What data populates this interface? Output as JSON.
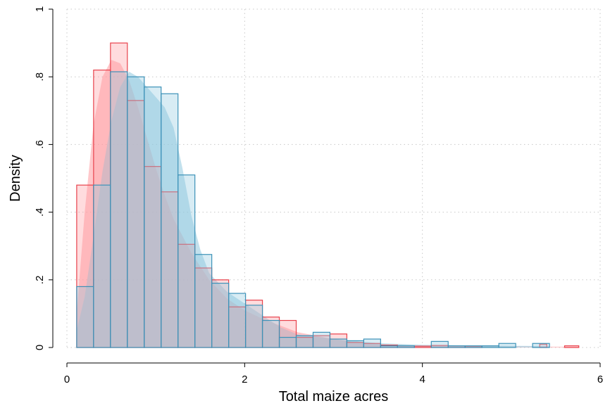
{
  "chart_data": {
    "type": "histogram",
    "xlabel": "Total maize acres",
    "ylabel": "Density",
    "xlim": [
      0,
      6
    ],
    "ylim": [
      0,
      1
    ],
    "x_ticks": [
      {
        "value": 0,
        "label": "0"
      },
      {
        "value": 2,
        "label": "2"
      },
      {
        "value": 4,
        "label": "4"
      },
      {
        "value": 6,
        "label": "6"
      }
    ],
    "y_ticks": [
      {
        "value": 0,
        "label": "0"
      },
      {
        "value": 0.2,
        "label": ".2"
      },
      {
        "value": 0.4,
        "label": ".4"
      },
      {
        "value": 0.6,
        "label": ".6"
      },
      {
        "value": 0.8,
        "label": ".8"
      },
      {
        "value": 1,
        "label": "1"
      }
    ],
    "grid": true,
    "series": [
      {
        "color": "#e8424c",
        "fill": "#ff9aa0",
        "bins": [
          {
            "x0": 0.11,
            "x1": 0.3,
            "y": 0.48
          },
          {
            "x0": 0.3,
            "x1": 0.49,
            "y": 0.82
          },
          {
            "x0": 0.49,
            "x1": 0.68,
            "y": 0.9
          },
          {
            "x0": 0.68,
            "x1": 0.87,
            "y": 0.73
          },
          {
            "x0": 0.87,
            "x1": 1.06,
            "y": 0.535
          },
          {
            "x0": 1.06,
            "x1": 1.25,
            "y": 0.46
          },
          {
            "x0": 1.25,
            "x1": 1.44,
            "y": 0.305
          },
          {
            "x0": 1.44,
            "x1": 1.63,
            "y": 0.235
          },
          {
            "x0": 1.63,
            "x1": 1.82,
            "y": 0.2
          },
          {
            "x0": 1.82,
            "x1": 2.01,
            "y": 0.12
          },
          {
            "x0": 2.01,
            "x1": 2.2,
            "y": 0.14
          },
          {
            "x0": 2.2,
            "x1": 2.39,
            "y": 0.09
          },
          {
            "x0": 2.39,
            "x1": 2.58,
            "y": 0.08
          },
          {
            "x0": 2.58,
            "x1": 2.77,
            "y": 0.03
          },
          {
            "x0": 2.77,
            "x1": 2.96,
            "y": 0.035
          },
          {
            "x0": 2.96,
            "x1": 3.15,
            "y": 0.04
          },
          {
            "x0": 3.15,
            "x1": 3.34,
            "y": 0.015
          },
          {
            "x0": 3.34,
            "x1": 3.53,
            "y": 0.012
          },
          {
            "x0": 3.53,
            "x1": 3.72,
            "y": 0.007
          },
          {
            "x0": 3.72,
            "x1": 3.91,
            "y": 0.005
          },
          {
            "x0": 3.91,
            "x1": 4.1,
            "y": 0.004
          },
          {
            "x0": 4.1,
            "x1": 4.29,
            "y": 0.006
          },
          {
            "x0": 4.29,
            "x1": 4.48,
            "y": 0.005
          },
          {
            "x0": 4.48,
            "x1": 4.67,
            "y": 0.004
          },
          {
            "x0": 5.32,
            "x1": 5.4,
            "y": 0.01
          },
          {
            "x0": 5.6,
            "x1": 5.76,
            "y": 0.005
          }
        ],
        "density_curve": [
          {
            "x": 0.11,
            "y": 0.1
          },
          {
            "x": 0.2,
            "y": 0.4
          },
          {
            "x": 0.3,
            "y": 0.66
          },
          {
            "x": 0.4,
            "y": 0.8
          },
          {
            "x": 0.5,
            "y": 0.85
          },
          {
            "x": 0.6,
            "y": 0.84
          },
          {
            "x": 0.7,
            "y": 0.79
          },
          {
            "x": 0.8,
            "y": 0.71
          },
          {
            "x": 0.9,
            "y": 0.62
          },
          {
            "x": 1.0,
            "y": 0.53
          },
          {
            "x": 1.1,
            "y": 0.45
          },
          {
            "x": 1.2,
            "y": 0.38
          },
          {
            "x": 1.4,
            "y": 0.28
          },
          {
            "x": 1.6,
            "y": 0.2
          },
          {
            "x": 1.8,
            "y": 0.145
          },
          {
            "x": 2.0,
            "y": 0.11
          },
          {
            "x": 2.2,
            "y": 0.085
          },
          {
            "x": 2.4,
            "y": 0.065
          },
          {
            "x": 2.6,
            "y": 0.045
          },
          {
            "x": 2.8,
            "y": 0.035
          },
          {
            "x": 3.0,
            "y": 0.025
          },
          {
            "x": 3.2,
            "y": 0.017
          },
          {
            "x": 3.5,
            "y": 0.01
          },
          {
            "x": 4.0,
            "y": 0.005
          },
          {
            "x": 5.0,
            "y": 0.003
          },
          {
            "x": 5.76,
            "y": 0.002
          }
        ]
      },
      {
        "color": "#3d92b8",
        "fill": "#8fc9df",
        "bins": [
          {
            "x0": 0.11,
            "x1": 0.3,
            "y": 0.18
          },
          {
            "x0": 0.3,
            "x1": 0.49,
            "y": 0.48
          },
          {
            "x0": 0.49,
            "x1": 0.68,
            "y": 0.815
          },
          {
            "x0": 0.68,
            "x1": 0.87,
            "y": 0.8
          },
          {
            "x0": 0.87,
            "x1": 1.06,
            "y": 0.77
          },
          {
            "x0": 1.06,
            "x1": 1.25,
            "y": 0.75
          },
          {
            "x0": 1.25,
            "x1": 1.44,
            "y": 0.51
          },
          {
            "x0": 1.44,
            "x1": 1.63,
            "y": 0.275
          },
          {
            "x0": 1.63,
            "x1": 1.82,
            "y": 0.19
          },
          {
            "x0": 1.82,
            "x1": 2.01,
            "y": 0.16
          },
          {
            "x0": 2.01,
            "x1": 2.2,
            "y": 0.125
          },
          {
            "x0": 2.2,
            "x1": 2.39,
            "y": 0.08
          },
          {
            "x0": 2.39,
            "x1": 2.58,
            "y": 0.03
          },
          {
            "x0": 2.58,
            "x1": 2.77,
            "y": 0.035
          },
          {
            "x0": 2.77,
            "x1": 2.96,
            "y": 0.045
          },
          {
            "x0": 2.96,
            "x1": 3.15,
            "y": 0.025
          },
          {
            "x0": 3.15,
            "x1": 3.34,
            "y": 0.02
          },
          {
            "x0": 3.34,
            "x1": 3.53,
            "y": 0.025
          },
          {
            "x0": 3.53,
            "x1": 3.72,
            "y": 0.005
          },
          {
            "x0": 3.72,
            "x1": 3.91,
            "y": 0.005
          },
          {
            "x0": 4.1,
            "x1": 4.29,
            "y": 0.018
          },
          {
            "x0": 4.29,
            "x1": 4.48,
            "y": 0.005
          },
          {
            "x0": 4.48,
            "x1": 4.67,
            "y": 0.005
          },
          {
            "x0": 4.67,
            "x1": 4.86,
            "y": 0.005
          },
          {
            "x0": 4.86,
            "x1": 5.05,
            "y": 0.012
          },
          {
            "x0": 5.24,
            "x1": 5.43,
            "y": 0.012
          }
        ],
        "density_curve": [
          {
            "x": 0.11,
            "y": 0.05
          },
          {
            "x": 0.2,
            "y": 0.15
          },
          {
            "x": 0.3,
            "y": 0.33
          },
          {
            "x": 0.4,
            "y": 0.52
          },
          {
            "x": 0.5,
            "y": 0.67
          },
          {
            "x": 0.6,
            "y": 0.77
          },
          {
            "x": 0.7,
            "y": 0.815
          },
          {
            "x": 0.8,
            "y": 0.8
          },
          {
            "x": 0.9,
            "y": 0.77
          },
          {
            "x": 1.0,
            "y": 0.74
          },
          {
            "x": 1.1,
            "y": 0.71
          },
          {
            "x": 1.2,
            "y": 0.65
          },
          {
            "x": 1.3,
            "y": 0.53
          },
          {
            "x": 1.4,
            "y": 0.39
          },
          {
            "x": 1.5,
            "y": 0.29
          },
          {
            "x": 1.6,
            "y": 0.22
          },
          {
            "x": 1.8,
            "y": 0.165
          },
          {
            "x": 2.0,
            "y": 0.13
          },
          {
            "x": 2.2,
            "y": 0.095
          },
          {
            "x": 2.4,
            "y": 0.06
          },
          {
            "x": 2.6,
            "y": 0.038
          },
          {
            "x": 2.8,
            "y": 0.032
          },
          {
            "x": 3.0,
            "y": 0.025
          },
          {
            "x": 3.2,
            "y": 0.02
          },
          {
            "x": 3.5,
            "y": 0.013
          },
          {
            "x": 4.0,
            "y": 0.008
          },
          {
            "x": 4.5,
            "y": 0.006
          },
          {
            "x": 5.0,
            "y": 0.005
          },
          {
            "x": 5.43,
            "y": 0.004
          }
        ]
      }
    ]
  }
}
